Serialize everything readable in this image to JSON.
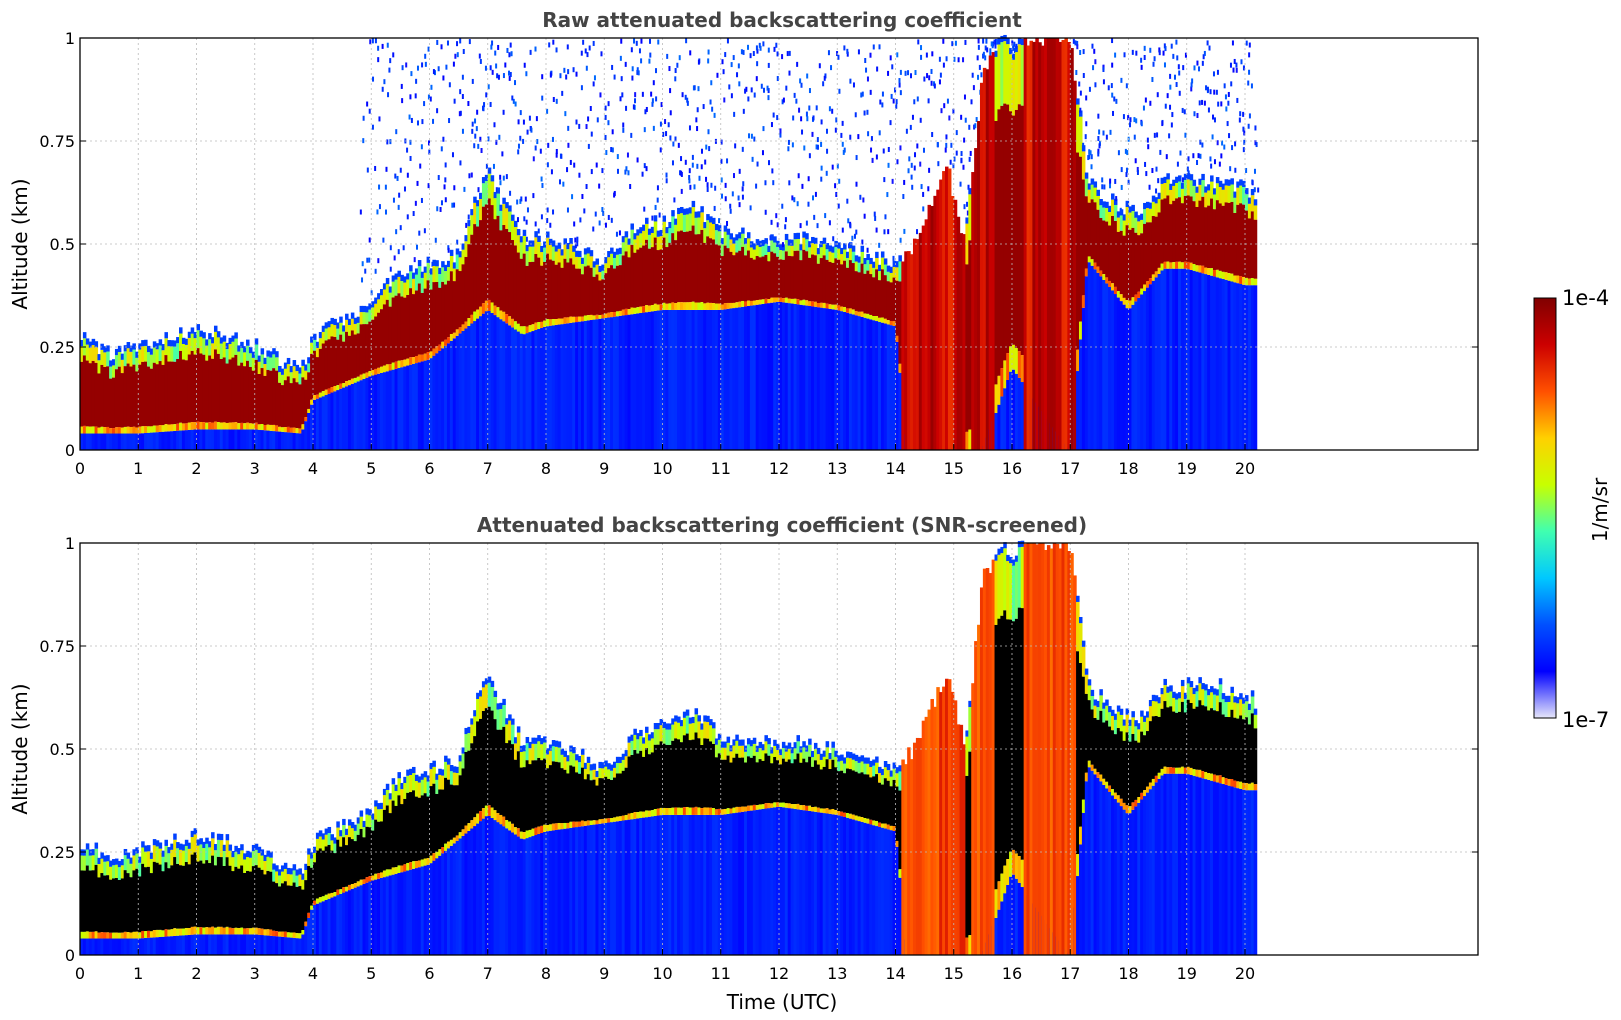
{
  "chart_data": [
    {
      "type": "heatmap",
      "title": "Raw attenuated backscattering coefficient",
      "xlabel": "",
      "ylabel": "Altitude (km)",
      "xlim": [
        0,
        24
      ],
      "ylim": [
        0,
        1
      ],
      "x_ticks": [
        "0",
        "1",
        "2",
        "3",
        "4",
        "5",
        "6",
        "7",
        "8",
        "9",
        "10",
        "11",
        "12",
        "13",
        "14",
        "15",
        "16",
        "17",
        "18",
        "19",
        "20"
      ],
      "y_ticks": [
        "0",
        "0.25",
        "0.5",
        "0.75",
        "1"
      ],
      "grid": true,
      "data_end_time": 20.2,
      "layer_top_km": [
        [
          0,
          0.26
        ],
        [
          0.5,
          0.22
        ],
        [
          1,
          0.24
        ],
        [
          1.5,
          0.26
        ],
        [
          2,
          0.28
        ],
        [
          2.5,
          0.26
        ],
        [
          3,
          0.24
        ],
        [
          3.5,
          0.2
        ],
        [
          3.8,
          0.18
        ],
        [
          4,
          0.26
        ],
        [
          4.5,
          0.3
        ],
        [
          5,
          0.34
        ],
        [
          5.5,
          0.42
        ],
        [
          6,
          0.44
        ],
        [
          6.5,
          0.46
        ],
        [
          6.8,
          0.6
        ],
        [
          7,
          0.66
        ],
        [
          7.3,
          0.58
        ],
        [
          7.6,
          0.5
        ],
        [
          8,
          0.5
        ],
        [
          8.5,
          0.48
        ],
        [
          9,
          0.44
        ],
        [
          9.5,
          0.52
        ],
        [
          10,
          0.54
        ],
        [
          10.5,
          0.58
        ],
        [
          11,
          0.52
        ],
        [
          11.5,
          0.5
        ],
        [
          12,
          0.5
        ],
        [
          12.5,
          0.5
        ],
        [
          13,
          0.48
        ],
        [
          13.5,
          0.46
        ],
        [
          14,
          0.44
        ],
        [
          14.3,
          0.5
        ],
        [
          14.6,
          0.6
        ],
        [
          14.9,
          0.68
        ],
        [
          15.2,
          0.5
        ],
        [
          15.5,
          0.92
        ],
        [
          15.8,
          0.98
        ],
        [
          16,
          0.96
        ],
        [
          16.3,
          1
        ],
        [
          16.6,
          1
        ],
        [
          17,
          1
        ],
        [
          17.3,
          0.64
        ],
        [
          17.8,
          0.58
        ],
        [
          18.2,
          0.56
        ],
        [
          18.6,
          0.64
        ],
        [
          19,
          0.64
        ],
        [
          19.5,
          0.64
        ],
        [
          20,
          0.62
        ],
        [
          20.2,
          0.6
        ]
      ],
      "layer_base_km": [
        [
          0,
          0.04
        ],
        [
          1,
          0.04
        ],
        [
          2,
          0.05
        ],
        [
          3,
          0.05
        ],
        [
          3.8,
          0.04
        ],
        [
          4,
          0.12
        ],
        [
          5,
          0.18
        ],
        [
          6,
          0.22
        ],
        [
          7,
          0.34
        ],
        [
          7.6,
          0.28
        ],
        [
          8,
          0.3
        ],
        [
          9,
          0.32
        ],
        [
          10,
          0.34
        ],
        [
          11,
          0.34
        ],
        [
          12,
          0.36
        ],
        [
          13,
          0.34
        ],
        [
          14,
          0.3
        ],
        [
          14.2,
          0
        ],
        [
          15,
          0
        ],
        [
          15.5,
          0
        ],
        [
          16,
          0.2
        ],
        [
          17,
          0
        ],
        [
          17.3,
          0.46
        ],
        [
          18,
          0.34
        ],
        [
          18.6,
          0.44
        ],
        [
          19,
          0.44
        ],
        [
          20,
          0.4
        ],
        [
          20.2,
          0.4
        ]
      ],
      "precip_intervals_utc": [
        [
          14.1,
          15.2
        ],
        [
          15.3,
          15.7
        ],
        [
          16.2,
          17.1
        ]
      ]
    },
    {
      "type": "heatmap",
      "title": "Attenuated backscattering coefficient (SNR-screened)",
      "xlabel": "Time (UTC)",
      "ylabel": "Altitude (km)",
      "xlim": [
        0,
        24
      ],
      "ylim": [
        0,
        1
      ],
      "x_ticks": [
        "0",
        "1",
        "2",
        "3",
        "4",
        "5",
        "6",
        "7",
        "8",
        "9",
        "10",
        "11",
        "12",
        "13",
        "14",
        "15",
        "16",
        "17",
        "18",
        "19",
        "20"
      ],
      "y_ticks": [
        "0",
        "0.25",
        "0.5",
        "0.75",
        "1"
      ],
      "grid": true,
      "data_end_time": 20.2,
      "saturated_color": "#000000"
    }
  ],
  "colorbar": {
    "label": "1/m/sr",
    "max_label": "1e-4",
    "min_label": "1e-7",
    "scale": "log",
    "stops": [
      "#e6e6fa",
      "#0000ff",
      "#0050ff",
      "#00c8ff",
      "#40ffb0",
      "#c8ff00",
      "#ffd000",
      "#ff5000",
      "#cc0000",
      "#800000"
    ]
  }
}
